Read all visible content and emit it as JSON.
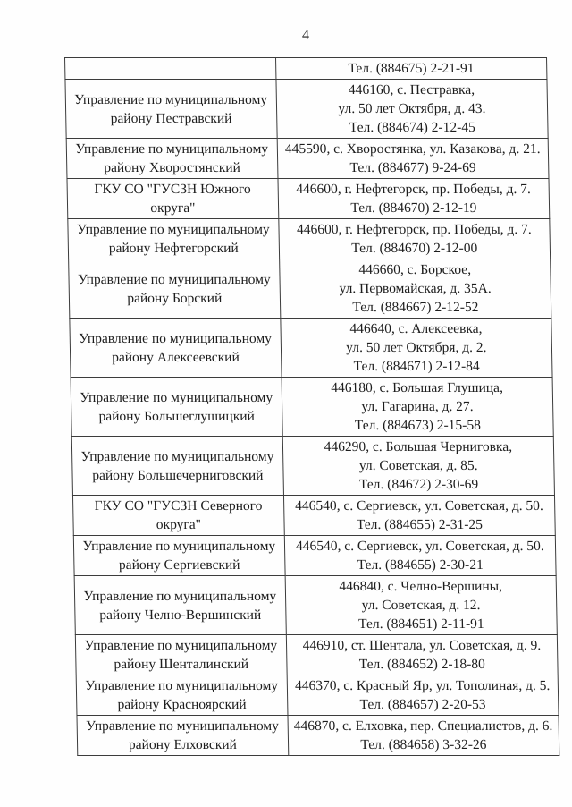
{
  "page_number": "4",
  "colors": {
    "text": "#1d1d1d",
    "border": "#3c3c3c",
    "background": "#fefefe"
  },
  "table": {
    "rows": [
      {
        "org_lines": [],
        "contact_lines": [
          "Тел. (884675) 2-21-91"
        ]
      },
      {
        "org_lines": [
          "Управление по муниципальному",
          "району Пестравский"
        ],
        "contact_lines": [
          "446160, с. Пестравка,",
          "ул. 50 лет Октября, д. 43.",
          "Тел. (884674) 2-12-45"
        ]
      },
      {
        "org_lines": [
          "Управление по муниципальному",
          "району Хворостянский"
        ],
        "contact_lines": [
          "445590, с. Хворостянка, ул. Казакова, д. 21.",
          "Тел. (884677) 9-24-69"
        ]
      },
      {
        "org_lines": [
          "ГКУ СО \"ГУСЗН Южного",
          "округа\""
        ],
        "contact_lines": [
          "446600, г. Нефтегорск, пр. Победы, д. 7.",
          "Тел. (884670) 2-12-19"
        ]
      },
      {
        "org_lines": [
          "Управление по муниципальному",
          "району Нефтегорский"
        ],
        "contact_lines": [
          "446600, г. Нефтегорск, пр. Победы, д. 7.",
          "Тел. (884670) 2-12-00"
        ]
      },
      {
        "org_lines": [
          "Управление по муниципальному",
          "району Борский"
        ],
        "contact_lines": [
          "446660, с. Борское,",
          "ул. Первомайская, д. 35А.",
          "Тел. (884667) 2-12-52"
        ]
      },
      {
        "org_lines": [
          "Управление по муниципальному",
          "району Алексеевский"
        ],
        "contact_lines": [
          "446640, с. Алексеевка,",
          "ул. 50 лет Октября, д. 2.",
          "Тел. (884671) 2-12-84"
        ]
      },
      {
        "org_lines": [
          "Управление по муниципальному",
          "району Большеглушицкий"
        ],
        "contact_lines": [
          "446180, с. Большая Глушица,",
          "ул. Гагарина, д. 27.",
          "Тел. (884673) 2-15-58"
        ]
      },
      {
        "org_lines": [
          "Управление по муниципальному",
          "району Большечерниговский"
        ],
        "contact_lines": [
          "446290, с. Большая Черниговка,",
          "ул. Советская, д. 85.",
          "Тел. (84672) 2-30-69"
        ]
      },
      {
        "org_lines": [
          "ГКУ СО \"ГУСЗН Северного",
          "округа\""
        ],
        "contact_lines": [
          "446540, с. Сергиевск, ул. Советская, д. 50.",
          "Тел. (884655) 2-31-25"
        ]
      },
      {
        "org_lines": [
          "Управление по муниципальному",
          "району Сергиевский"
        ],
        "contact_lines": [
          "446540, с. Сергиевск, ул. Советская, д. 50.",
          "Тел. (884655) 2-30-21"
        ]
      },
      {
        "org_lines": [
          "Управление по муниципальному",
          "району Челно-Вершинский"
        ],
        "contact_lines": [
          "446840, с. Челно-Вершины,",
          "ул. Советская, д. 12.",
          "Тел. (884651) 2-11-91"
        ]
      },
      {
        "org_lines": [
          "Управление по муниципальному",
          "району Шенталинский"
        ],
        "contact_lines": [
          "446910, ст. Шентала, ул. Советская, д. 9.",
          "Тел. (884652) 2-18-80"
        ]
      },
      {
        "org_lines": [
          "Управление по муниципальному",
          "району Красноярский"
        ],
        "contact_lines": [
          "446370, с. Красный Яр, ул. Тополиная, д. 5.",
          "Тел. (884657) 2-20-53"
        ]
      },
      {
        "org_lines": [
          "Управление по муниципальному",
          "району Елховский"
        ],
        "contact_lines": [
          "446870, с. Елховка, пер. Специалистов, д. 6.",
          "Тел. (884658) 3-32-26"
        ]
      }
    ]
  }
}
